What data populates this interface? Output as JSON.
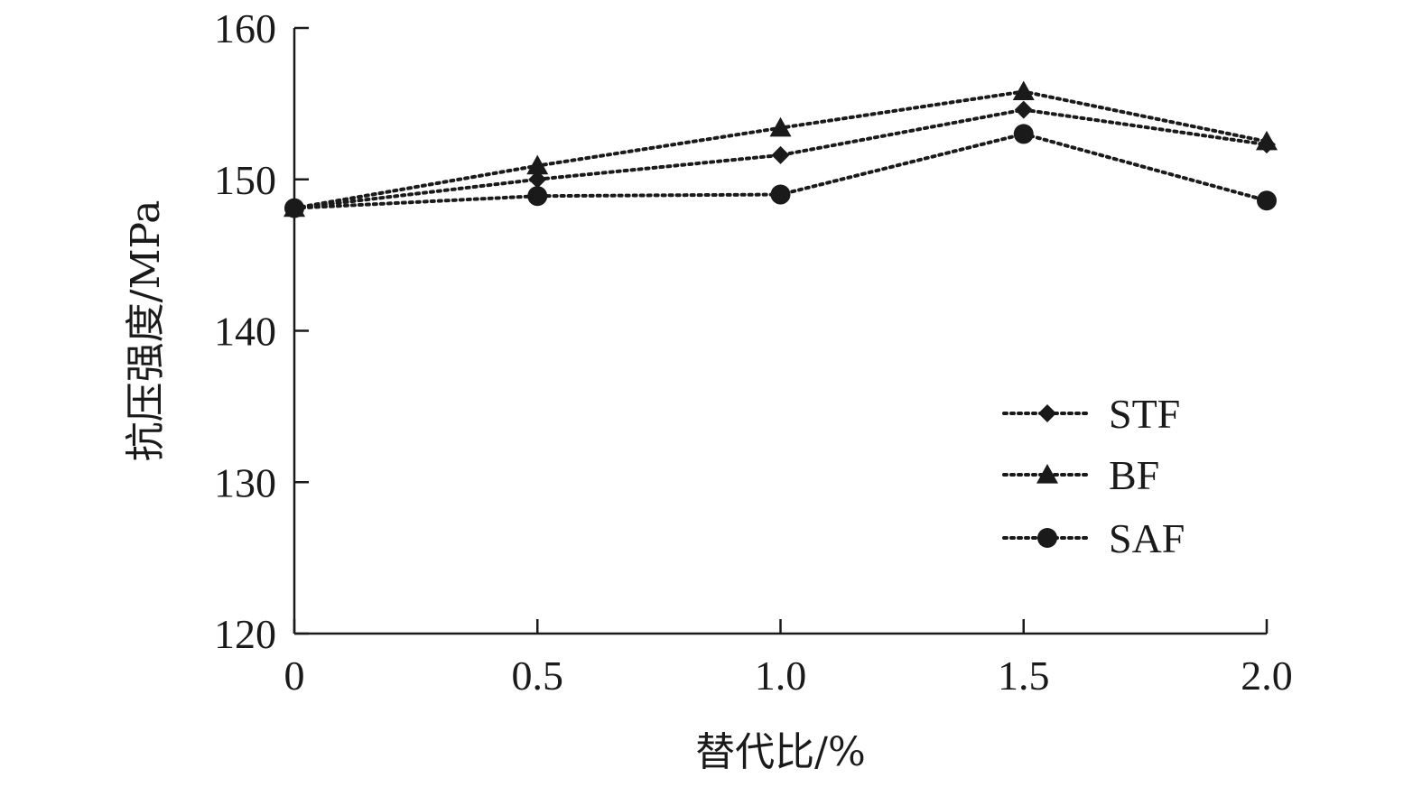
{
  "chart_data": {
    "type": "line",
    "xlabel": "替代比/%",
    "ylabel": "抗压强度/MPa",
    "x": [
      0,
      0.5,
      1.0,
      1.5,
      2.0
    ],
    "x_tick_labels": [
      "0",
      "0.5",
      "1.0",
      "1.5",
      "2.0"
    ],
    "y_tick_labels": [
      "120",
      "130",
      "140",
      "150",
      "160"
    ],
    "xlim": [
      0,
      2.0
    ],
    "ylim": [
      120,
      160
    ],
    "grid": false,
    "legend_position": "lower-right",
    "line_style": "dotted",
    "color": "#1a1a1a",
    "series": [
      {
        "name": "STF",
        "marker": "diamond",
        "values": [
          148.1,
          150.0,
          151.6,
          154.6,
          152.3
        ]
      },
      {
        "name": "BF",
        "marker": "triangle",
        "values": [
          148.1,
          150.9,
          153.4,
          155.8,
          152.5
        ]
      },
      {
        "name": "SAF",
        "marker": "circle",
        "values": [
          148.1,
          148.9,
          149.0,
          153.0,
          148.6
        ]
      }
    ]
  }
}
